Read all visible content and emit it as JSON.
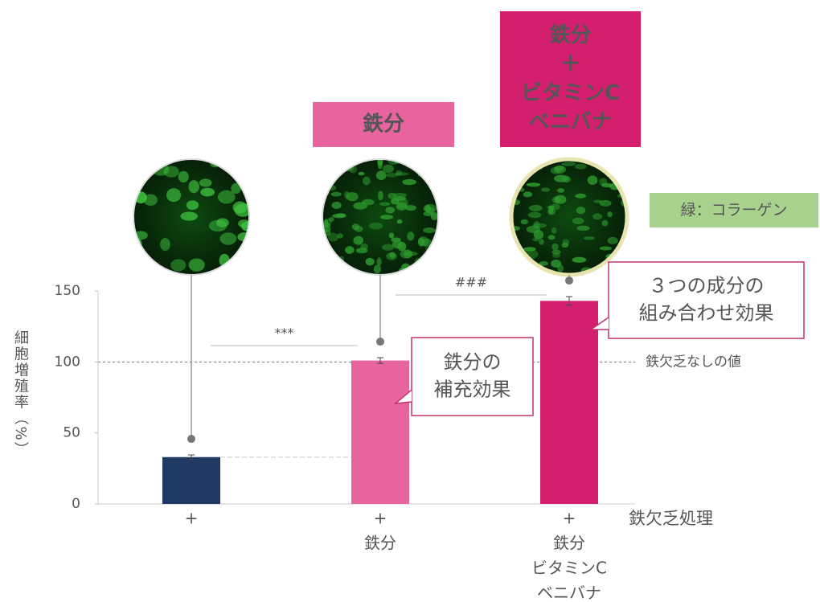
{
  "chart_data": {
    "type": "bar",
    "y_label": "細胞増殖率（%）",
    "x_label": "鉄欠乏処理",
    "categories": [
      [
        "+"
      ],
      [
        "+",
        "鉄分"
      ],
      [
        "+",
        "鉄分",
        "ビタミンC",
        "ベニバナ"
      ]
    ],
    "values": [
      33,
      101,
      143
    ],
    "errors": [
      1.5,
      2,
      3
    ],
    "colors": [
      "#1f3864",
      "#e8649e",
      "#d41f6e"
    ],
    "ylim": [
      0,
      150
    ],
    "yticks": [
      0,
      50,
      100,
      150
    ],
    "reference_line": {
      "value": 100,
      "label": "鉄欠乏なしの値"
    },
    "significance": [
      "***",
      "###"
    ],
    "panel_labels": [
      [
        "鉄分"
      ],
      [
        "鉄分",
        "＋",
        "ビタミンC",
        "ベニバナ"
      ]
    ],
    "legend": "緑：コラーゲン",
    "callouts": [
      [
        "鉄分の",
        "補充効果"
      ],
      [
        "３つの成分の",
        "組み合わせ効果"
      ]
    ]
  }
}
